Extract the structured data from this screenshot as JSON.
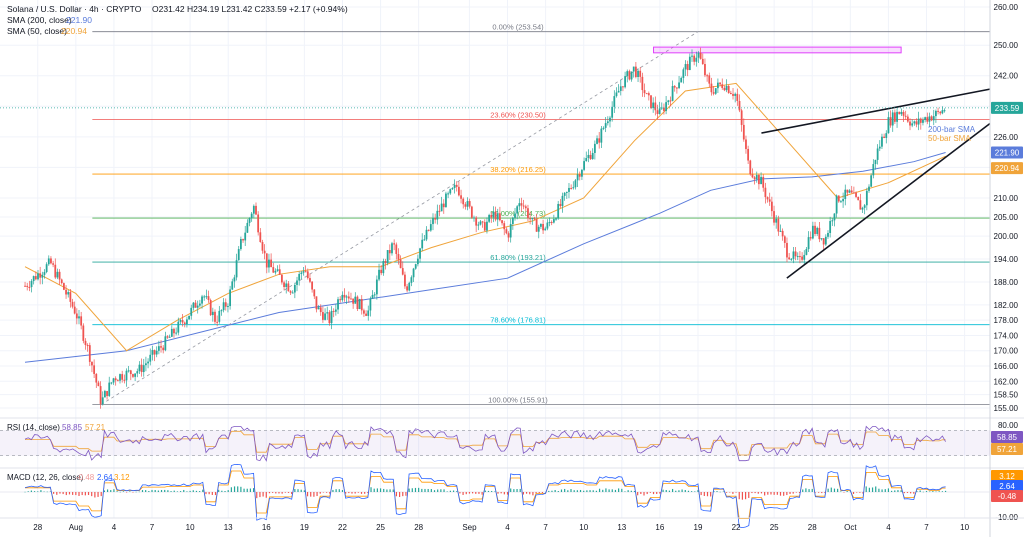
{
  "header": {
    "title_line": "Solana / U.S. Dollar · 4h · CRYPTO",
    "ohlc": "O231.42  H234.19  L231.42  C233.59  +2.17 (+0.94%)",
    "sma200_label": "SMA (200, close)",
    "sma200_value": "221.90",
    "sma50_label": "SMA (50, close)",
    "sma50_value": "220.94"
  },
  "colors": {
    "up": "#26a69a",
    "down": "#ef5350",
    "sma200": "#5b7cdb",
    "sma50": "#f0a43a",
    "rsi": "#7e57c2",
    "macd": "#2962ff",
    "signal": "#ff9800"
  },
  "badges": {
    "price": "233.59",
    "sma200": "221.90",
    "sma50": "220.94",
    "rsi": "58.85",
    "rsi_ma": "57.21",
    "macd_a": "3.12",
    "macd_b": "2.64",
    "macd_c": "-0.48"
  },
  "annotations": {
    "sma200_label": "200-bar SMA",
    "sma50_label": "50-bar SMA"
  },
  "rsi_panel": {
    "label": "RSI (14, close)",
    "value1": "58.85",
    "value2": "57.21"
  },
  "macd_panel": {
    "label": "MACD (12, 26, close)",
    "value1": "-0.48",
    "value2": "2.64",
    "value3": "3.12"
  },
  "chart_data": {
    "type": "candlestick",
    "price_ticks": [
      260,
      250,
      242,
      234,
      226,
      218,
      210,
      205,
      200,
      194,
      188,
      182,
      178,
      174,
      170,
      166,
      162,
      158.5,
      155
    ],
    "price_tick_labels": [
      "260.00",
      "250.00",
      "242.00",
      "234.00",
      "226.00",
      "218.00",
      "210.00",
      "205.00",
      "200.00",
      "194.00",
      "188.00",
      "182.00",
      "178.00",
      "174.00",
      "170.00",
      "166.00",
      "162.00",
      "158.50",
      "155.00"
    ],
    "x_labels": [
      "28",
      "Aug",
      "4",
      "7",
      "10",
      "13",
      "16",
      "19",
      "22",
      "25",
      "28",
      "Sep",
      "4",
      "7",
      "10",
      "13",
      "16",
      "19",
      "22",
      "25",
      "28",
      "Oct",
      "4",
      "7",
      "10"
    ],
    "x_label_days": [
      -3,
      0,
      3,
      6,
      9,
      12,
      15,
      18,
      21,
      24,
      27,
      31,
      34,
      37,
      40,
      43,
      46,
      49,
      52,
      55,
      58,
      61,
      64,
      67,
      70
    ],
    "fibonacci": [
      {
        "label": "0.00% (253.54)",
        "price": 253.54
      },
      {
        "label": "23.60% (230.50)",
        "price": 230.5
      },
      {
        "label": "38.20% (216.25)",
        "price": 216.25
      },
      {
        "label": "50.00% (204.73)",
        "price": 204.73
      },
      {
        "label": "61.80% (193.21)",
        "price": 193.21
      },
      {
        "label": "78.60% (176.81)",
        "price": 176.81
      },
      {
        "label": "100.00% (155.91)",
        "price": 155.91
      }
    ],
    "resistance_zone": [
      248,
      249.5
    ],
    "path": [
      [
        -4,
        187
      ],
      [
        -2,
        193
      ],
      [
        0,
        180
      ],
      [
        1,
        170
      ],
      [
        2,
        156.5
      ],
      [
        3,
        163
      ],
      [
        5,
        165
      ],
      [
        7,
        172
      ],
      [
        9,
        180
      ],
      [
        10,
        185
      ],
      [
        11,
        178
      ],
      [
        12,
        183
      ],
      [
        13,
        198
      ],
      [
        14,
        208
      ],
      [
        15,
        193
      ],
      [
        17,
        186
      ],
      [
        18,
        192
      ],
      [
        19,
        181
      ],
      [
        20,
        178
      ],
      [
        21,
        186
      ],
      [
        23,
        180
      ],
      [
        24,
        191
      ],
      [
        25,
        198
      ],
      [
        26,
        186
      ],
      [
        27,
        196
      ],
      [
        28,
        203
      ],
      [
        29,
        209
      ],
      [
        30,
        213
      ],
      [
        31,
        207
      ],
      [
        32,
        202
      ],
      [
        33,
        206
      ],
      [
        34,
        200
      ],
      [
        35,
        210
      ],
      [
        36,
        203
      ],
      [
        37,
        202
      ],
      [
        38,
        207
      ],
      [
        39,
        213
      ],
      [
        40,
        219
      ],
      [
        41,
        224
      ],
      [
        42,
        232
      ],
      [
        43,
        240
      ],
      [
        44,
        244
      ],
      [
        45,
        236
      ],
      [
        46,
        232
      ],
      [
        47,
        238
      ],
      [
        48,
        244
      ],
      [
        49,
        248
      ],
      [
        50,
        238
      ],
      [
        51,
        240
      ],
      [
        52,
        237
      ],
      [
        53,
        218
      ],
      [
        54,
        214
      ],
      [
        55,
        205
      ],
      [
        56,
        196
      ],
      [
        57,
        193
      ],
      [
        58,
        202
      ],
      [
        59,
        199
      ],
      [
        60,
        210
      ],
      [
        61,
        211
      ],
      [
        62,
        207
      ],
      [
        63,
        221
      ],
      [
        64,
        230
      ],
      [
        65,
        233
      ],
      [
        66,
        229
      ],
      [
        67,
        231
      ],
      [
        68,
        232.2
      ],
      [
        68.5,
        233.6
      ]
    ],
    "sma50": [
      [
        -4,
        192
      ],
      [
        0,
        185
      ],
      [
        4,
        170
      ],
      [
        8,
        178
      ],
      [
        12,
        185
      ],
      [
        16,
        190
      ],
      [
        20,
        192
      ],
      [
        24,
        192
      ],
      [
        28,
        197
      ],
      [
        32,
        201
      ],
      [
        36,
        204
      ],
      [
        40,
        210
      ],
      [
        44,
        225
      ],
      [
        48,
        238
      ],
      [
        52,
        240
      ],
      [
        56,
        225
      ],
      [
        60,
        210
      ],
      [
        64,
        214
      ],
      [
        68.5,
        220.94
      ]
    ],
    "sma200": [
      [
        -4,
        167
      ],
      [
        4,
        170
      ],
      [
        10,
        175
      ],
      [
        16,
        180
      ],
      [
        22,
        183
      ],
      [
        28,
        186
      ],
      [
        34,
        189
      ],
      [
        40,
        198
      ],
      [
        46,
        206
      ],
      [
        50,
        212
      ],
      [
        54,
        215
      ],
      [
        58,
        215.5
      ],
      [
        62,
        217
      ],
      [
        66,
        219.5
      ],
      [
        68.5,
        221.9
      ]
    ],
    "trendlines": [
      {
        "from": [
          54,
          227
        ],
        "to": [
          72,
          238.5
        ]
      },
      {
        "from": [
          56,
          189
        ],
        "to": [
          72,
          229.5
        ]
      }
    ],
    "rsi": {
      "ylim": [
        20,
        80
      ],
      "upper": 70,
      "lower": 30,
      "last": 58.85,
      "ma_last": 57.21
    },
    "macd": {
      "last": -0.48,
      "macd_line": 2.64,
      "signal": 3.12
    }
  }
}
